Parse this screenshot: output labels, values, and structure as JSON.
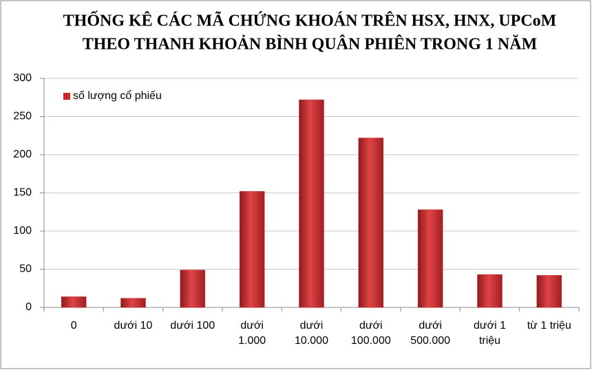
{
  "chart_data": {
    "type": "bar",
    "title": [
      "THỐNG KÊ CÁC MÃ CHỨNG KHOÁN TRÊN HSX, HNX, UPCoM",
      "THEO THANH KHOẢN BÌNH QUÂN PHIÊN TRONG 1 NĂM"
    ],
    "categories": [
      "0",
      "dưới 10",
      "dưới 100",
      "dưới\n1.000",
      "dưới\n10.000",
      "dưới\n100.000",
      "dưới\n500.000",
      "dưới 1\ntriệu",
      "từ 1 triệu"
    ],
    "series": [
      {
        "name": "số lượng cổ phiếu",
        "color": "#c8282b",
        "values": [
          14,
          12,
          49,
          152,
          272,
          222,
          128,
          43,
          42
        ]
      }
    ],
    "ylim": [
      0,
      300
    ],
    "yticks": [
      0,
      50,
      100,
      150,
      200,
      250,
      300
    ],
    "grid": true,
    "legend": "upper left"
  }
}
